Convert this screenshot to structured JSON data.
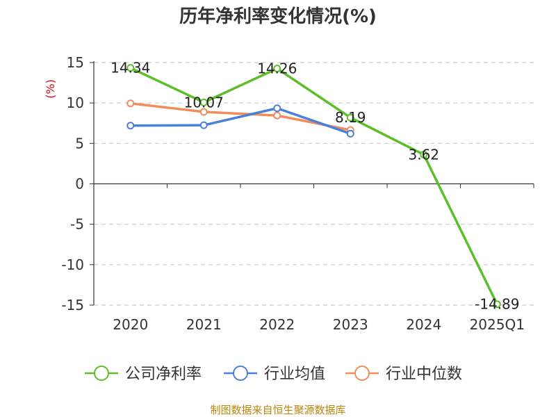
{
  "chart_data": {
    "type": "line",
    "title": "历年净利率变化情况(%)",
    "ylabel": "(%)",
    "xlabel": "",
    "categories": [
      "2020",
      "2021",
      "2022",
      "2023",
      "2024",
      "2025Q1"
    ],
    "ylim": [
      -15,
      15
    ],
    "yticks": [
      15,
      10,
      5,
      0,
      -5,
      -10,
      -15
    ],
    "grid": true,
    "legend_position": "bottom",
    "series": [
      {
        "name": "公司净利率",
        "color": "#5cbf2a",
        "values": [
          14.34,
          10.07,
          14.26,
          8.19,
          3.62,
          -14.89
        ],
        "labels": [
          "14.34",
          "10.07",
          "14.26",
          "8.19",
          "3.62",
          "-14.89"
        ]
      },
      {
        "name": "行业均值",
        "color": "#4a7fdc",
        "values": [
          7.2,
          7.25,
          9.35,
          6.2,
          null,
          null
        ]
      },
      {
        "name": "行业中位数",
        "color": "#f28c5a",
        "values": [
          9.95,
          8.9,
          8.45,
          6.65,
          null,
          null
        ]
      }
    ]
  },
  "source": "制图数据来自恒生聚源数据库"
}
